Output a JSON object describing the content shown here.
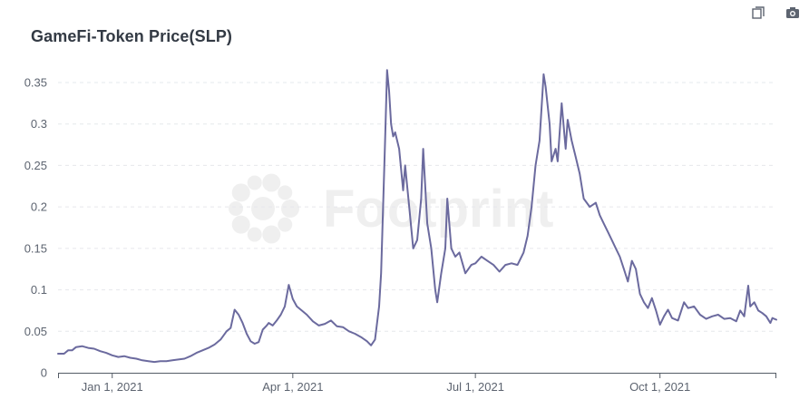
{
  "chart_data": {
    "type": "line",
    "title": "GameFi-Token Price(SLP)",
    "xlabel": "",
    "ylabel": "",
    "xlim": [
      "2020-12-05",
      "2021-11-28"
    ],
    "ylim": [
      0,
      0.35
    ],
    "y_ticks": [
      0,
      0.05,
      0.1,
      0.15,
      0.2,
      0.25,
      0.3,
      0.35
    ],
    "y_tick_labels": [
      "0",
      "0.05",
      "0.1",
      "0.15",
      "0.2",
      "0.25",
      "0.3",
      "0.35"
    ],
    "x_ticks": [
      "2021-01-01",
      "2021-04-01",
      "2021-07-01",
      "2021-10-01"
    ],
    "x_tick_labels": [
      "Jan 1, 2021",
      "Apr 1, 2021",
      "Jul 1, 2021",
      "Oct 1, 2021"
    ],
    "grid": true,
    "legend": "none",
    "watermark": "Footprint",
    "colors": {
      "line": "#6b6a9e",
      "grid": "#e6e8ec",
      "axis": "#555c66",
      "tick_text": "#5d6470",
      "title": "#333a44"
    },
    "series": [
      {
        "points": [
          [
            "2020-12-05",
            0.023
          ],
          [
            "2020-12-08",
            0.023
          ],
          [
            "2020-12-10",
            0.027
          ],
          [
            "2020-12-12",
            0.027
          ],
          [
            "2020-12-14",
            0.031
          ],
          [
            "2020-12-17",
            0.032
          ],
          [
            "2020-12-20",
            0.03
          ],
          [
            "2020-12-23",
            0.029
          ],
          [
            "2020-12-26",
            0.026
          ],
          [
            "2020-12-29",
            0.024
          ],
          [
            "2021-01-01",
            0.021
          ],
          [
            "2021-01-04",
            0.019
          ],
          [
            "2021-01-07",
            0.02
          ],
          [
            "2021-01-10",
            0.018
          ],
          [
            "2021-01-13",
            0.017
          ],
          [
            "2021-01-16",
            0.015
          ],
          [
            "2021-01-19",
            0.014
          ],
          [
            "2021-01-22",
            0.013
          ],
          [
            "2021-01-25",
            0.014
          ],
          [
            "2021-01-28",
            0.014
          ],
          [
            "2021-01-31",
            0.015
          ],
          [
            "2021-02-03",
            0.016
          ],
          [
            "2021-02-06",
            0.017
          ],
          [
            "2021-02-09",
            0.02
          ],
          [
            "2021-02-12",
            0.024
          ],
          [
            "2021-02-15",
            0.027
          ],
          [
            "2021-02-18",
            0.03
          ],
          [
            "2021-02-21",
            0.034
          ],
          [
            "2021-02-24",
            0.04
          ],
          [
            "2021-02-27",
            0.05
          ],
          [
            "2021-03-01",
            0.054
          ],
          [
            "2021-03-03",
            0.076
          ],
          [
            "2021-03-05",
            0.07
          ],
          [
            "2021-03-07",
            0.06
          ],
          [
            "2021-03-09",
            0.047
          ],
          [
            "2021-03-11",
            0.038
          ],
          [
            "2021-03-13",
            0.035
          ],
          [
            "2021-03-15",
            0.037
          ],
          [
            "2021-03-17",
            0.052
          ],
          [
            "2021-03-19",
            0.057
          ],
          [
            "2021-03-20",
            0.06
          ],
          [
            "2021-03-22",
            0.057
          ],
          [
            "2021-03-24",
            0.063
          ],
          [
            "2021-03-26",
            0.07
          ],
          [
            "2021-03-28",
            0.08
          ],
          [
            "2021-03-30",
            0.106
          ],
          [
            "2021-04-01",
            0.089
          ],
          [
            "2021-04-03",
            0.08
          ],
          [
            "2021-04-05",
            0.076
          ],
          [
            "2021-04-08",
            0.07
          ],
          [
            "2021-04-11",
            0.062
          ],
          [
            "2021-04-14",
            0.057
          ],
          [
            "2021-04-17",
            0.059
          ],
          [
            "2021-04-20",
            0.063
          ],
          [
            "2021-04-23",
            0.056
          ],
          [
            "2021-04-26",
            0.055
          ],
          [
            "2021-04-29",
            0.05
          ],
          [
            "2021-05-02",
            0.047
          ],
          [
            "2021-05-05",
            0.043
          ],
          [
            "2021-05-08",
            0.038
          ],
          [
            "2021-05-10",
            0.033
          ],
          [
            "2021-05-12",
            0.04
          ],
          [
            "2021-05-14",
            0.08
          ],
          [
            "2021-05-15",
            0.12
          ],
          [
            "2021-05-16",
            0.2
          ],
          [
            "2021-05-17",
            0.28
          ],
          [
            "2021-05-18",
            0.365
          ],
          [
            "2021-05-19",
            0.34
          ],
          [
            "2021-05-20",
            0.3
          ],
          [
            "2021-05-21",
            0.285
          ],
          [
            "2021-05-22",
            0.29
          ],
          [
            "2021-05-24",
            0.27
          ],
          [
            "2021-05-26",
            0.22
          ],
          [
            "2021-05-27",
            0.25
          ],
          [
            "2021-05-29",
            0.2
          ],
          [
            "2021-05-31",
            0.15
          ],
          [
            "2021-06-02",
            0.16
          ],
          [
            "2021-06-04",
            0.21
          ],
          [
            "2021-06-05",
            0.27
          ],
          [
            "2021-06-07",
            0.18
          ],
          [
            "2021-06-09",
            0.15
          ],
          [
            "2021-06-11",
            0.1
          ],
          [
            "2021-06-12",
            0.085
          ],
          [
            "2021-06-14",
            0.12
          ],
          [
            "2021-06-16",
            0.15
          ],
          [
            "2021-06-17",
            0.21
          ],
          [
            "2021-06-19",
            0.15
          ],
          [
            "2021-06-21",
            0.14
          ],
          [
            "2021-06-23",
            0.145
          ],
          [
            "2021-06-26",
            0.12
          ],
          [
            "2021-06-29",
            0.13
          ],
          [
            "2021-07-01",
            0.132
          ],
          [
            "2021-07-04",
            0.14
          ],
          [
            "2021-07-07",
            0.135
          ],
          [
            "2021-07-10",
            0.13
          ],
          [
            "2021-07-13",
            0.122
          ],
          [
            "2021-07-16",
            0.13
          ],
          [
            "2021-07-19",
            0.132
          ],
          [
            "2021-07-22",
            0.13
          ],
          [
            "2021-07-25",
            0.145
          ],
          [
            "2021-07-27",
            0.165
          ],
          [
            "2021-07-29",
            0.2
          ],
          [
            "2021-07-31",
            0.25
          ],
          [
            "2021-08-02",
            0.28
          ],
          [
            "2021-08-04",
            0.36
          ],
          [
            "2021-08-05",
            0.345
          ],
          [
            "2021-08-07",
            0.3
          ],
          [
            "2021-08-08",
            0.255
          ],
          [
            "2021-08-10",
            0.27
          ],
          [
            "2021-08-11",
            0.255
          ],
          [
            "2021-08-13",
            0.325
          ],
          [
            "2021-08-15",
            0.27
          ],
          [
            "2021-08-16",
            0.305
          ],
          [
            "2021-08-18",
            0.28
          ],
          [
            "2021-08-20",
            0.26
          ],
          [
            "2021-08-22",
            0.24
          ],
          [
            "2021-08-24",
            0.21
          ],
          [
            "2021-08-27",
            0.2
          ],
          [
            "2021-08-30",
            0.205
          ],
          [
            "2021-09-01",
            0.19
          ],
          [
            "2021-09-03",
            0.18
          ],
          [
            "2021-09-05",
            0.17
          ],
          [
            "2021-09-07",
            0.16
          ],
          [
            "2021-09-09",
            0.15
          ],
          [
            "2021-09-11",
            0.14
          ],
          [
            "2021-09-13",
            0.125
          ],
          [
            "2021-09-15",
            0.11
          ],
          [
            "2021-09-17",
            0.135
          ],
          [
            "2021-09-19",
            0.125
          ],
          [
            "2021-09-21",
            0.095
          ],
          [
            "2021-09-23",
            0.085
          ],
          [
            "2021-09-25",
            0.078
          ],
          [
            "2021-09-27",
            0.09
          ],
          [
            "2021-09-29",
            0.075
          ],
          [
            "2021-10-01",
            0.058
          ],
          [
            "2021-10-03",
            0.068
          ],
          [
            "2021-10-05",
            0.076
          ],
          [
            "2021-10-07",
            0.066
          ],
          [
            "2021-10-10",
            0.063
          ],
          [
            "2021-10-13",
            0.085
          ],
          [
            "2021-10-15",
            0.078
          ],
          [
            "2021-10-18",
            0.08
          ],
          [
            "2021-10-21",
            0.07
          ],
          [
            "2021-10-24",
            0.065
          ],
          [
            "2021-10-27",
            0.068
          ],
          [
            "2021-10-30",
            0.07
          ],
          [
            "2021-11-02",
            0.065
          ],
          [
            "2021-11-05",
            0.066
          ],
          [
            "2021-11-08",
            0.062
          ],
          [
            "2021-11-10",
            0.075
          ],
          [
            "2021-11-12",
            0.068
          ],
          [
            "2021-11-14",
            0.105
          ],
          [
            "2021-11-15",
            0.08
          ],
          [
            "2021-11-17",
            0.085
          ],
          [
            "2021-11-19",
            0.075
          ],
          [
            "2021-11-21",
            0.072
          ],
          [
            "2021-11-23",
            0.068
          ],
          [
            "2021-11-25",
            0.06
          ],
          [
            "2021-11-26",
            0.066
          ],
          [
            "2021-11-28",
            0.064
          ]
        ]
      }
    ]
  },
  "toolbar": {
    "icons": [
      "copy-icon",
      "camera-icon"
    ]
  }
}
